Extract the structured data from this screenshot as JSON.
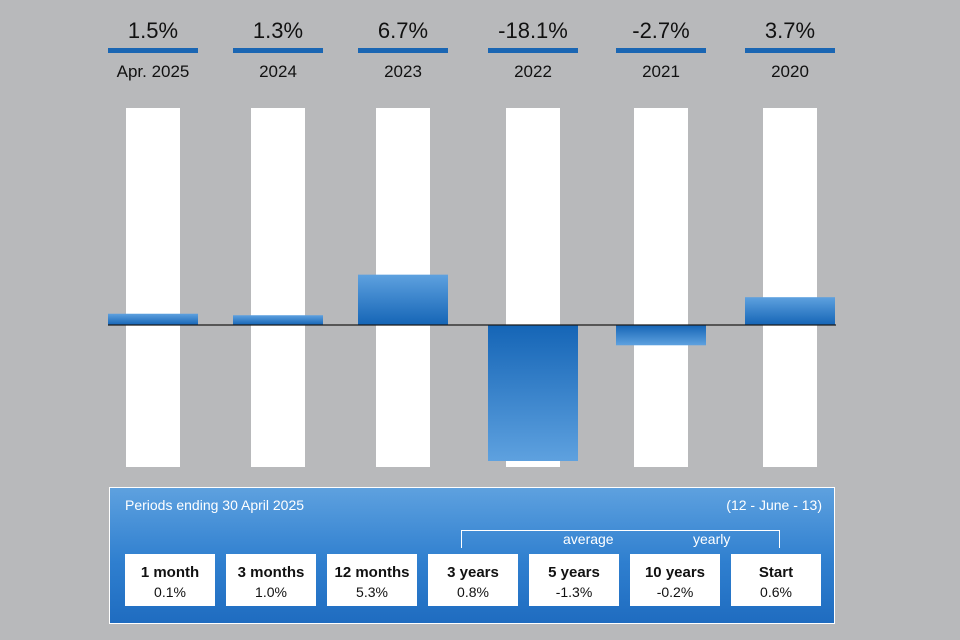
{
  "chart_data": {
    "type": "bar",
    "categories": [
      "Apr. 2025",
      "2024",
      "2023",
      "2022",
      "2021",
      "2020"
    ],
    "values": [
      1.5,
      1.3,
      6.7,
      -18.1,
      -2.7,
      3.7
    ],
    "value_labels": [
      "1.5%",
      "1.3%",
      "6.7%",
      "-18.1%",
      "-2.7%",
      "3.7%"
    ],
    "ylim": [
      -18.1,
      18.1
    ],
    "grid": false,
    "colors": {
      "bar_top": "#5ea1df",
      "bar_bottom": "#1565b6",
      "track": "#ffffff",
      "baseline": "#1b1b1b",
      "header_rule": "#1a66b3"
    }
  },
  "periods": {
    "heading": "Periods ending 30 April 2025",
    "code": "(12 - June - 13)",
    "average_label": "average",
    "yearly_label": "yearly",
    "items": [
      {
        "label": "1 month",
        "value": "0.1%"
      },
      {
        "label": "3 months",
        "value": "1.0%"
      },
      {
        "label": "12 months",
        "value": "5.3%"
      },
      {
        "label": "3 years",
        "value": "0.8%"
      },
      {
        "label": "5 years",
        "value": "-1.3%"
      },
      {
        "label": "10 years",
        "value": "-0.2%"
      },
      {
        "label": "Start",
        "value": "0.6%"
      }
    ]
  }
}
